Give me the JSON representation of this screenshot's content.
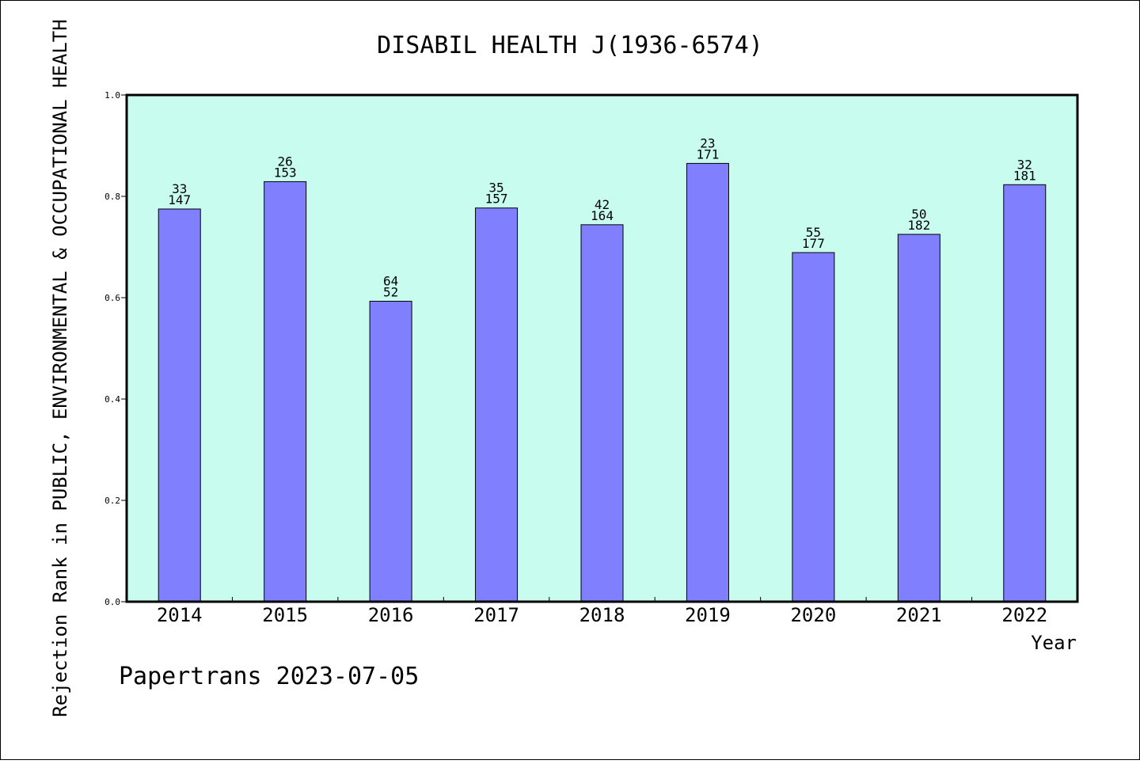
{
  "chart_data": {
    "type": "bar",
    "title": "DISABIL HEALTH J(1936-6574)",
    "xlabel": "Year",
    "ylabel": "Rejection Rank in PUBLIC, ENVIRONMENTAL & OCCUPATIONAL HEALTH",
    "ylim": [
      0.0,
      1.0
    ],
    "yticks": [
      "0.0",
      "0.2",
      "0.4",
      "0.6",
      "0.8",
      "1.0"
    ],
    "categories": [
      "2014",
      "2015",
      "2016",
      "2017",
      "2018",
      "2019",
      "2020",
      "2021",
      "2022"
    ],
    "values": [
      0.775,
      0.829,
      0.593,
      0.777,
      0.744,
      0.865,
      0.689,
      0.725,
      0.823
    ],
    "label_top": [
      "33",
      "26",
      "64",
      "35",
      "42",
      "23",
      "55",
      "50",
      "32"
    ],
    "label_bottom": [
      "147",
      "153",
      "52",
      "157",
      "164",
      "171",
      "177",
      "182",
      "181"
    ],
    "grid": false,
    "bar_color": "#8080ff",
    "plot_background": "#c8fcee"
  },
  "footer": "Papertrans 2023-07-05"
}
